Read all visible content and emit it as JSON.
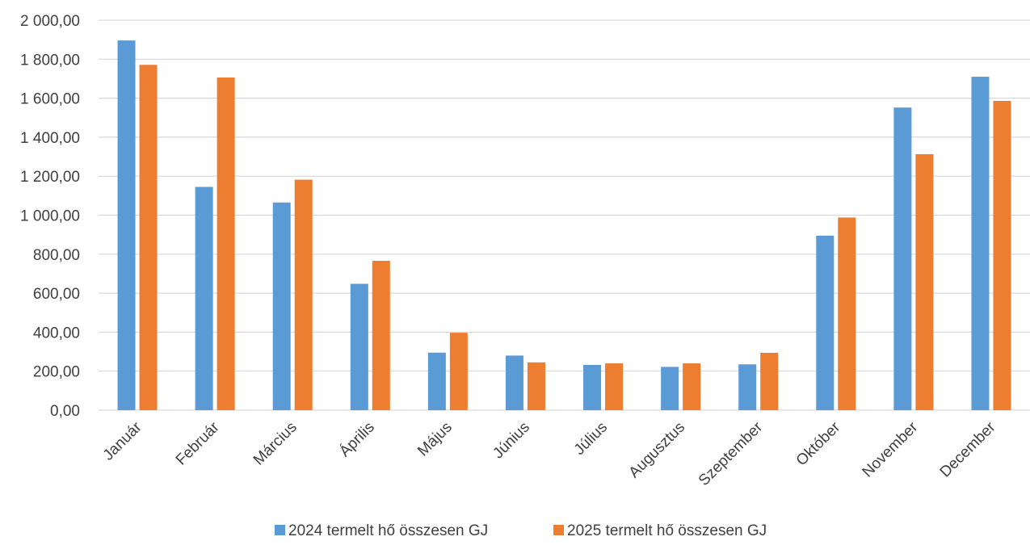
{
  "chart_data": {
    "type": "bar",
    "title": "",
    "xlabel": "",
    "ylabel": "",
    "categories": [
      "Január",
      "Február",
      "Március",
      "Április",
      "Május",
      "Június",
      "Július",
      "Augusztus",
      "Szeptember",
      "Október",
      "November",
      "December"
    ],
    "series": [
      {
        "name": "2024 termelt hő összesen GJ",
        "color": "#5b9bd5",
        "values": [
          1896,
          1145,
          1065,
          648,
          295,
          280,
          232,
          222,
          235,
          895,
          1552,
          1710
        ]
      },
      {
        "name": "2025 termelt hő összesen GJ",
        "color": "#ed7d31",
        "values": [
          1771,
          1706,
          1182,
          766,
          397,
          245,
          240,
          240,
          294,
          988,
          1313,
          1586
        ]
      }
    ],
    "ylim": [
      0,
      2000
    ],
    "y_ticks": [
      0,
      200,
      400,
      600,
      800,
      1000,
      1200,
      1400,
      1600,
      1800,
      2000
    ],
    "y_tick_labels": [
      "0,00",
      "200,00",
      "400,00",
      "600,00",
      "800,00",
      "1 000,00",
      "1 200,00",
      "1 400,00",
      "1 600,00",
      "1 800,00",
      "2 000,00"
    ],
    "grid": true,
    "legend_position": "bottom"
  }
}
